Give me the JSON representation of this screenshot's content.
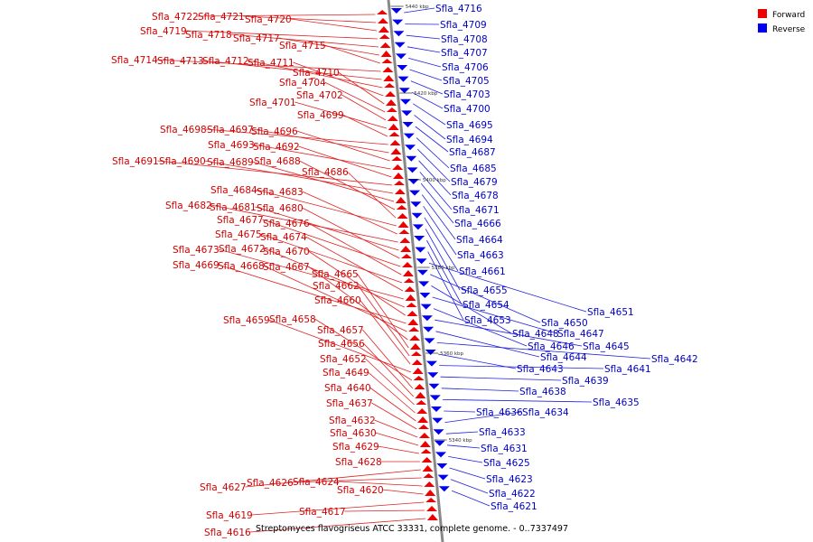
{
  "caption": "Streptomyces flavogriseus ATCC 33331, complete genome. - 0..7337497",
  "legend": {
    "items": [
      {
        "label": "Forward",
        "color": "#ee0000"
      },
      {
        "label": "Reverse",
        "color": "#0000ee"
      }
    ]
  },
  "scale_ticks": [
    "5440 kbp",
    "5420 kbp",
    "5400 kbp",
    "5380 kbp",
    "5360 kbp",
    "5340 kbp"
  ],
  "forward_labels": [
    "Sfla_4722",
    "Sfla_4721",
    "Sfla_4720",
    "Sfla_4719",
    "Sfla_4718",
    "Sfla_4717",
    "Sfla_4715",
    "Sfla_4714",
    "Sfla_4713",
    "Sfla_4712",
    "Sfla_4711",
    "Sfla_4710",
    "Sfla_4704",
    "Sfla_4702",
    "Sfla_4701",
    "Sfla_4699",
    "Sfla_4698",
    "Sfla_4697",
    "Sfla_4696",
    "Sfla_4693",
    "Sfla_4692",
    "Sfla_4691",
    "Sfla_4690",
    "Sfla_4689",
    "Sfla_4688",
    "Sfla_4686",
    "Sfla_4684",
    "Sfla_4683",
    "Sfla_4682",
    "Sfla_4681",
    "Sfla_4680",
    "Sfla_4677",
    "Sfla_4676",
    "Sfla_4675",
    "Sfla_4674",
    "Sfla_4673",
    "Sfla_4672",
    "Sfla_4670",
    "Sfla_4669",
    "Sfla_4668",
    "Sfla_4667",
    "Sfla_4665",
    "Sfla_4662",
    "Sfla_4660",
    "Sfla_4659",
    "Sfla_4658",
    "Sfla_4657",
    "Sfla_4656",
    "Sfla_4652",
    "Sfla_4649",
    "Sfla_4640",
    "Sfla_4637",
    "Sfla_4632",
    "Sfla_4630",
    "Sfla_4629",
    "Sfla_4628",
    "Sfla_4627",
    "Sfla_4626",
    "Sfla_4624",
    "Sfla_4620",
    "Sfla_4619",
    "Sfla_4617",
    "Sfla_4616"
  ],
  "reverse_labels": [
    "Sfla_4716",
    "Sfla_4709",
    "Sfla_4708",
    "Sfla_4707",
    "Sfla_4706",
    "Sfla_4705",
    "Sfla_4703",
    "Sfla_4700",
    "Sfla_4695",
    "Sfla_4694",
    "Sfla_4687",
    "Sfla_4685",
    "Sfla_4679",
    "Sfla_4678",
    "Sfla_4671",
    "Sfla_4666",
    "Sfla_4664",
    "Sfla_4663",
    "Sfla_4661",
    "Sfla_4655",
    "Sfla_4654",
    "Sfla_4653",
    "Sfla_4651",
    "Sfla_4650",
    "Sfla_4648",
    "Sfla_4647",
    "Sfla_4646",
    "Sfla_4645",
    "Sfla_4644",
    "Sfla_4642",
    "Sfla_4643",
    "Sfla_4641",
    "Sfla_4639",
    "Sfla_4638",
    "Sfla_4635",
    "Sfla_4636",
    "Sfla_4634",
    "Sfla_4633",
    "Sfla_4631",
    "Sfla_4625",
    "Sfla_4623",
    "Sfla_4622",
    "Sfla_4621"
  ]
}
